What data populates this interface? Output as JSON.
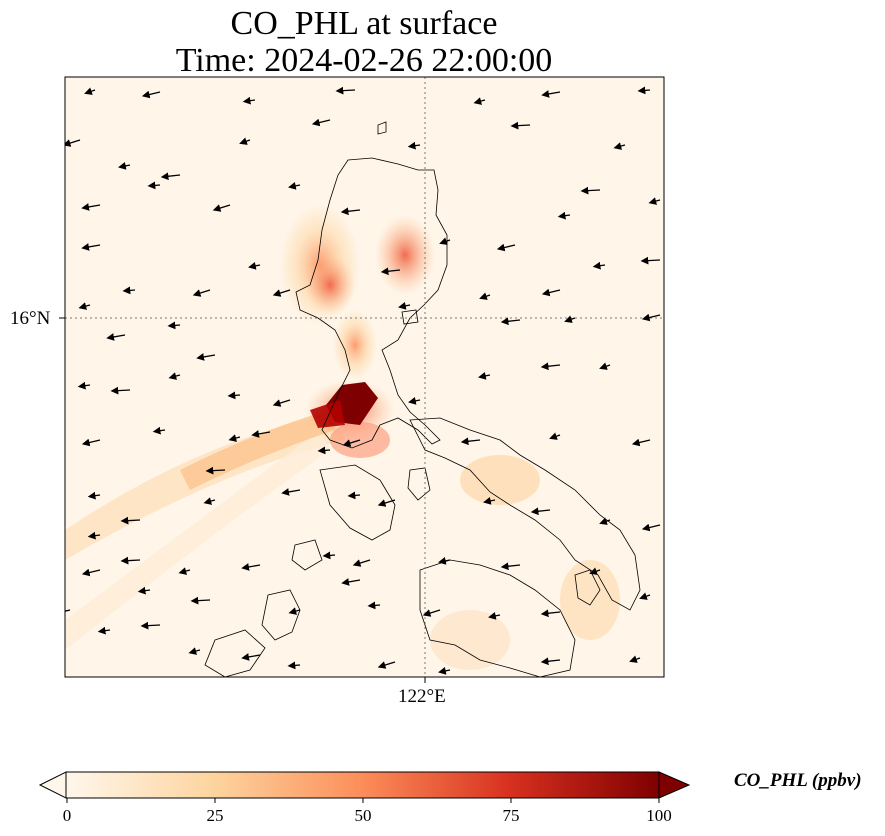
{
  "title": {
    "line1": "CO_PHL at surface",
    "line2": "Time: 2024-02-26 22:00:00"
  },
  "map": {
    "region": "Luzon, Philippines",
    "gridlines": "dotted",
    "lat_tick": "16°N",
    "lon_tick": "122°E",
    "coastline_color": "#000000",
    "wind_vectors": "shown"
  },
  "colorbar": {
    "label": "CO_PHL (ppbv)",
    "colormap": "OrRd",
    "ticks": [
      "0",
      "25",
      "50",
      "75",
      "100"
    ],
    "range": [
      0,
      100
    ],
    "extend": "both",
    "colors": [
      "#fff7ec",
      "#fdd49e",
      "#fc8d59",
      "#d7301f",
      "#7f0000"
    ]
  }
}
